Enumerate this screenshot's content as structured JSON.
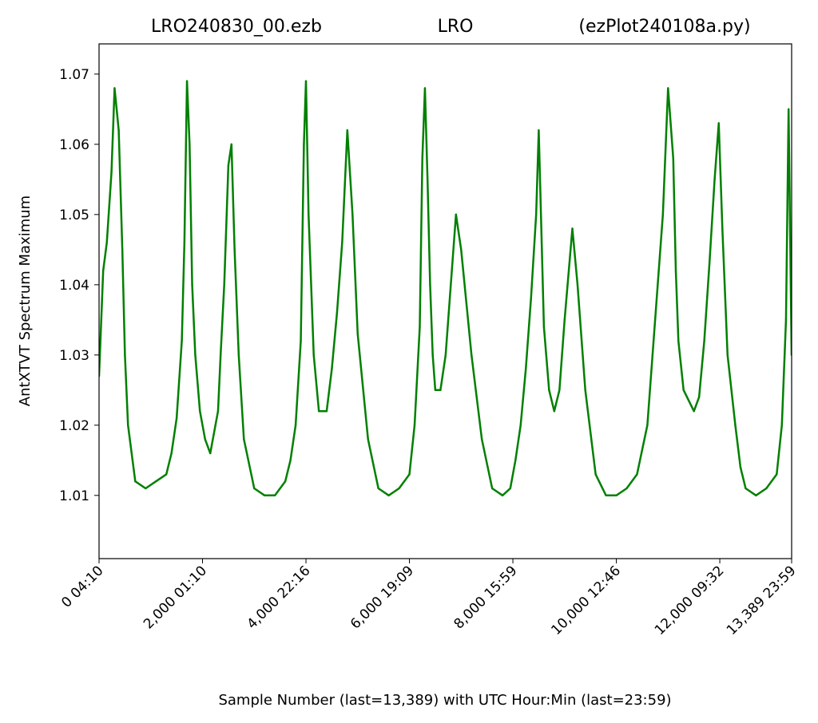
{
  "chart_data": {
    "type": "line",
    "title_left": "LRO240830_00.ezb",
    "title_center": "LRO",
    "title_right": "(ezPlot240108a.py)",
    "xlabel": "Sample Number (last=13,389) with UTC Hour:Min (last=23:59)",
    "ylabel": "AntXTVT Spectrum Maximum",
    "xlim": [
      0,
      13389
    ],
    "ylim": [
      1.001,
      1.0743
    ],
    "grid": false,
    "legend": "none",
    "line_color": "#008000",
    "x_ticks": [
      {
        "value": 0,
        "label": "0  04:10"
      },
      {
        "value": 2000,
        "label": "2,000  01:10"
      },
      {
        "value": 4000,
        "label": "4,000  22:16"
      },
      {
        "value": 6000,
        "label": "6,000  19:09"
      },
      {
        "value": 8000,
        "label": "8,000  15:59"
      },
      {
        "value": 10000,
        "label": "10,000  12:46"
      },
      {
        "value": 12000,
        "label": "12,000  09:32"
      },
      {
        "value": 13389,
        "label": "13,389  23:59"
      }
    ],
    "y_ticks": [
      {
        "value": 1.01,
        "label": "1.01"
      },
      {
        "value": 1.02,
        "label": "1.02"
      },
      {
        "value": 1.03,
        "label": "1.03"
      },
      {
        "value": 1.04,
        "label": "1.04"
      },
      {
        "value": 1.05,
        "label": "1.05"
      },
      {
        "value": 1.06,
        "label": "1.06"
      },
      {
        "value": 1.07,
        "label": "1.07"
      }
    ],
    "series": [
      {
        "x": [
          0,
          80,
          150,
          240,
          300,
          380,
          450,
          500,
          560,
          700,
          900,
          1100,
          1300,
          1400,
          1500,
          1600,
          1650,
          1700,
          1750,
          1800,
          1860,
          1950,
          2050,
          2150,
          2300,
          2350,
          2420,
          2500,
          2560,
          2620,
          2700,
          2800,
          3000,
          3200,
          3400,
          3600,
          3700,
          3800,
          3900,
          3960,
          4000,
          4050,
          4150,
          4250,
          4400,
          4500,
          4600,
          4700,
          4800,
          4900,
          5000,
          5200,
          5400,
          5600,
          5800,
          6000,
          6100,
          6200,
          6250,
          6300,
          6350,
          6400,
          6450,
          6500,
          6600,
          6700,
          6800,
          6900,
          7000,
          7200,
          7400,
          7600,
          7800,
          7950,
          8050,
          8150,
          8250,
          8350,
          8450,
          8500,
          8550,
          8600,
          8700,
          8800,
          8900,
          9000,
          9150,
          9250,
          9400,
          9600,
          9800,
          10000,
          10200,
          10400,
          10600,
          10700,
          10800,
          10900,
          11000,
          11100,
          11150,
          11200,
          11300,
          11500,
          11600,
          11700,
          11800,
          11900,
          11980,
          12050,
          12150,
          12300,
          12400,
          12500,
          12700,
          12900,
          13100,
          13200,
          13280,
          13330,
          13389
        ],
        "y": [
          1.027,
          1.042,
          1.046,
          1.056,
          1.068,
          1.062,
          1.045,
          1.03,
          1.02,
          1.012,
          1.011,
          1.012,
          1.013,
          1.016,
          1.021,
          1.032,
          1.046,
          1.069,
          1.06,
          1.04,
          1.03,
          1.022,
          1.018,
          1.016,
          1.022,
          1.03,
          1.04,
          1.057,
          1.06,
          1.045,
          1.03,
          1.018,
          1.011,
          1.01,
          1.01,
          1.012,
          1.015,
          1.02,
          1.032,
          1.06,
          1.069,
          1.05,
          1.03,
          1.022,
          1.022,
          1.028,
          1.036,
          1.046,
          1.062,
          1.05,
          1.033,
          1.018,
          1.011,
          1.01,
          1.011,
          1.013,
          1.02,
          1.034,
          1.058,
          1.068,
          1.055,
          1.04,
          1.03,
          1.025,
          1.025,
          1.03,
          1.04,
          1.05,
          1.045,
          1.03,
          1.018,
          1.011,
          1.01,
          1.011,
          1.015,
          1.02,
          1.028,
          1.038,
          1.05,
          1.062,
          1.048,
          1.034,
          1.025,
          1.022,
          1.025,
          1.035,
          1.048,
          1.04,
          1.025,
          1.013,
          1.01,
          1.01,
          1.011,
          1.013,
          1.02,
          1.03,
          1.04,
          1.05,
          1.068,
          1.058,
          1.042,
          1.032,
          1.025,
          1.022,
          1.024,
          1.032,
          1.043,
          1.055,
          1.063,
          1.048,
          1.03,
          1.02,
          1.014,
          1.011,
          1.01,
          1.011,
          1.013,
          1.02,
          1.035,
          1.065,
          1.03
        ]
      }
    ]
  }
}
